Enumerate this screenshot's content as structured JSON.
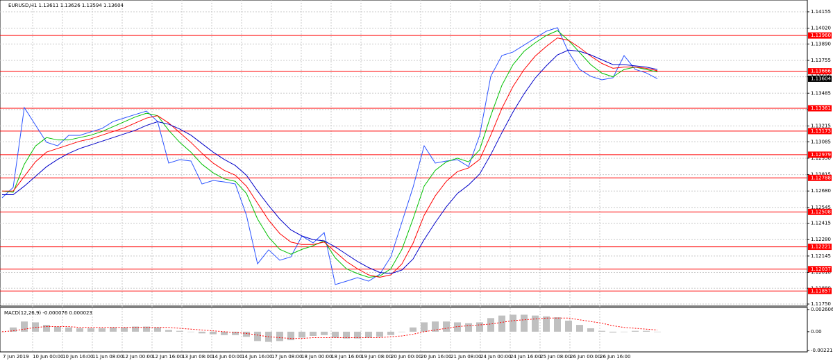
{
  "chart_data": {
    "type": "line",
    "title": "EURUSD,H1  1.13611 1.13626 1.13594 1.13604",
    "x_labels": [
      "7 Jun 2019",
      "10 Jun 00:00",
      "10 Jun 16:00",
      "11 Jun 08:00",
      "12 Jun 00:00",
      "12 Jun 16:00",
      "13 Jun 08:00",
      "14 Jun 00:00",
      "14 Jun 16:00",
      "17 Jun 08:00",
      "18 Jun 00:00",
      "18 Jun 16:00",
      "19 Jun 08:00",
      "20 Jun 00:00",
      "20 Jun 16:00",
      "21 Jun 08:00",
      "24 Jun 00:00",
      "24 Jun 16:00",
      "25 Jun 08:00",
      "26 Jun 00:00",
      "26 Jun 16:00"
    ],
    "ylim": [
      1.11733,
      1.14252
    ],
    "yticks": [
      1.14155,
      {
        "value": 1.1402,
        "label": "1.14020"
      },
      {
        "value": 1.1389,
        "label": "1.13890"
      },
      1.13755,
      {
        "value": 1.1362,
        "label": "1.13620"
      },
      1.13485,
      {
        "value": 1.1335,
        "label": "1.13350"
      },
      1.13215,
      1.13085,
      {
        "value": 1.1295,
        "label": "1.12950"
      },
      1.12815,
      {
        "value": 1.1268,
        "label": "1.12680"
      },
      1.12545,
      1.12415,
      {
        "value": 1.1228,
        "label": "1.12280"
      },
      1.12145,
      {
        "value": 1.1201,
        "label": "1.12010"
      },
      {
        "value": 1.1188,
        "label": "1.11880"
      },
      {
        "value": 1.1175,
        "label": "1.11750"
      }
    ],
    "grid": true,
    "series": [
      {
        "color": "#2a52ff",
        "values": [
          1.12624,
          1.1271,
          1.13367,
          1.13224,
          1.13081,
          1.13052,
          1.13138,
          1.13138,
          1.13167,
          1.13195,
          1.13252,
          1.13281,
          1.1331,
          1.13338,
          1.13252,
          1.1291,
          1.12938,
          1.12927,
          1.12738,
          1.12767,
          1.12755,
          1.12738,
          1.12481,
          1.12081,
          1.12196,
          1.1211,
          1.12138,
          1.1231,
          1.12253,
          1.12338,
          1.1191,
          1.11938,
          1.11967,
          1.11938,
          1.11995,
          1.12138,
          1.12424,
          1.1271,
          1.13052,
          1.1291,
          1.12927,
          1.12938,
          1.12881,
          1.13138,
          1.13624,
          1.13795,
          1.13824,
          1.13881,
          1.13938,
          1.13995,
          1.14024,
          1.13824,
          1.13681,
          1.13624,
          1.13595,
          1.13612,
          1.13795,
          1.13681,
          1.13652,
          1.13604
        ]
      },
      {
        "color": "#00c000",
        "values": [
          1.1268,
          1.1267,
          1.129,
          1.1305,
          1.1312,
          1.131,
          1.131,
          1.1312,
          1.1314,
          1.1317,
          1.1321,
          1.1325,
          1.1329,
          1.1332,
          1.133,
          1.1318,
          1.1308,
          1.13,
          1.129,
          1.1283,
          1.1278,
          1.1276,
          1.1266,
          1.1245,
          1.123,
          1.122,
          1.1216,
          1.122,
          1.1223,
          1.1227,
          1.1213,
          1.1204,
          1.12,
          1.1197,
          1.1198,
          1.1204,
          1.122,
          1.1245,
          1.1272,
          1.1285,
          1.1292,
          1.1295,
          1.1292,
          1.1302,
          1.133,
          1.1355,
          1.1372,
          1.1383,
          1.139,
          1.1396,
          1.14,
          1.1392,
          1.1382,
          1.1372,
          1.1365,
          1.1362,
          1.1368,
          1.137,
          1.1368,
          1.1366
        ]
      },
      {
        "color": "#ff0000",
        "values": [
          1.1268,
          1.1268,
          1.128,
          1.1292,
          1.13,
          1.1303,
          1.1306,
          1.1309,
          1.1311,
          1.1314,
          1.1317,
          1.132,
          1.1324,
          1.1328,
          1.133,
          1.1324,
          1.1316,
          1.1308,
          1.1299,
          1.1291,
          1.1285,
          1.1281,
          1.1272,
          1.1258,
          1.1244,
          1.1233,
          1.1226,
          1.1224,
          1.1224,
          1.1226,
          1.1218,
          1.121,
          1.1204,
          1.1199,
          1.1197,
          1.1199,
          1.1208,
          1.1225,
          1.1248,
          1.1264,
          1.1276,
          1.1284,
          1.1287,
          1.1294,
          1.1314,
          1.1336,
          1.1354,
          1.1368,
          1.1379,
          1.1387,
          1.1394,
          1.1392,
          1.1386,
          1.1379,
          1.1373,
          1.1369,
          1.137,
          1.137,
          1.1369,
          1.1367
        ]
      },
      {
        "color": "#0000c8",
        "values": [
          1.1265,
          1.1265,
          1.1272,
          1.128,
          1.1288,
          1.1294,
          1.1299,
          1.1303,
          1.1306,
          1.1309,
          1.1312,
          1.1315,
          1.1318,
          1.1322,
          1.1325,
          1.1323,
          1.1319,
          1.1314,
          1.1307,
          1.13,
          1.1294,
          1.1289,
          1.1281,
          1.1268,
          1.1256,
          1.1245,
          1.1236,
          1.1231,
          1.1228,
          1.1227,
          1.1222,
          1.1216,
          1.121,
          1.1205,
          1.1201,
          1.12,
          1.1203,
          1.1212,
          1.1228,
          1.1242,
          1.1255,
          1.1266,
          1.1273,
          1.1282,
          1.1298,
          1.1316,
          1.1333,
          1.1348,
          1.1361,
          1.1371,
          1.138,
          1.1384,
          1.1383,
          1.138,
          1.1376,
          1.1372,
          1.1372,
          1.1371,
          1.137,
          1.1368
        ]
      }
    ],
    "levels": {
      "color": "#ff0000",
      "values": [
        1.1396,
        1.13666,
        1.13361,
        1.13173,
        1.12979,
        1.12788,
        1.12508,
        1.12221,
        1.12037,
        1.11857
      ],
      "value_labels": [
        "1.13960",
        "1.13666",
        "1.13361",
        "1.13173",
        "1.12979",
        "1.12788",
        "1.12508",
        "1.12221",
        "1.12037",
        "1.11857"
      ]
    },
    "macd": {
      "label": "MACD(12,26,9) -0.000076 0.000023",
      "ylim": [
        -0.002215,
        0.002606
      ],
      "yticks": [
        0.002606,
        {
          "value": 0,
          "label": "0.00"
        },
        -0.002215
      ],
      "histogram": [
        0,
        0.0005,
        0.0012,
        0.0011,
        0.0008,
        0.0006,
        0.0005,
        0.0004,
        0.0004,
        0.0004,
        0.0005,
        0.0005,
        0.0006,
        0.0006,
        0.0005,
        0.0002,
        0.0001,
        0,
        -0.0002,
        -0.0003,
        -0.0004,
        -0.0004,
        -0.0006,
        -0.0011,
        -0.0012,
        -0.0011,
        -0.001,
        -0.0007,
        -0.0005,
        -0.0004,
        -0.0007,
        -0.0008,
        -0.0008,
        -0.0007,
        -0.0006,
        -0.0004,
        0,
        0.0005,
        0.0011,
        0.0012,
        0.0012,
        0.0011,
        0.001,
        0.0011,
        0.0016,
        0.0019,
        0.002,
        0.002,
        0.0019,
        0.0018,
        0.0017,
        0.0013,
        0.0008,
        0.0004,
        0.0001,
        -0.0001,
        0,
        0.0001,
        0.0001,
        0
      ],
      "signal": [
        0,
        0.0001,
        0.0003,
        0.0005,
        0.0006,
        0.0006,
        0.0006,
        0.0005,
        0.0005,
        0.0005,
        0.0005,
        0.0005,
        0.0005,
        0.0005,
        0.0005,
        0.0005,
        0.0004,
        0.0003,
        0.0002,
        0.0001,
        0,
        -0.0001,
        -0.0002,
        -0.0004,
        -0.0006,
        -0.0007,
        -0.0008,
        -0.0008,
        -0.0007,
        -0.0007,
        -0.0007,
        -0.0007,
        -0.0007,
        -0.0007,
        -0.0007,
        -0.0006,
        -0.0005,
        -0.0003,
        0,
        0.0002,
        0.0004,
        0.0006,
        0.0007,
        0.0008,
        0.0009,
        0.0011,
        0.0013,
        0.0014,
        0.0015,
        0.0016,
        0.0016,
        0.0016,
        0.0014,
        0.0012,
        0.001,
        0.0007,
        0.0005,
        0.0004,
        0.0003,
        0.0002
      ],
      "histogram_color": "#c0c0c0",
      "signal_color": "#ff0000"
    }
  }
}
